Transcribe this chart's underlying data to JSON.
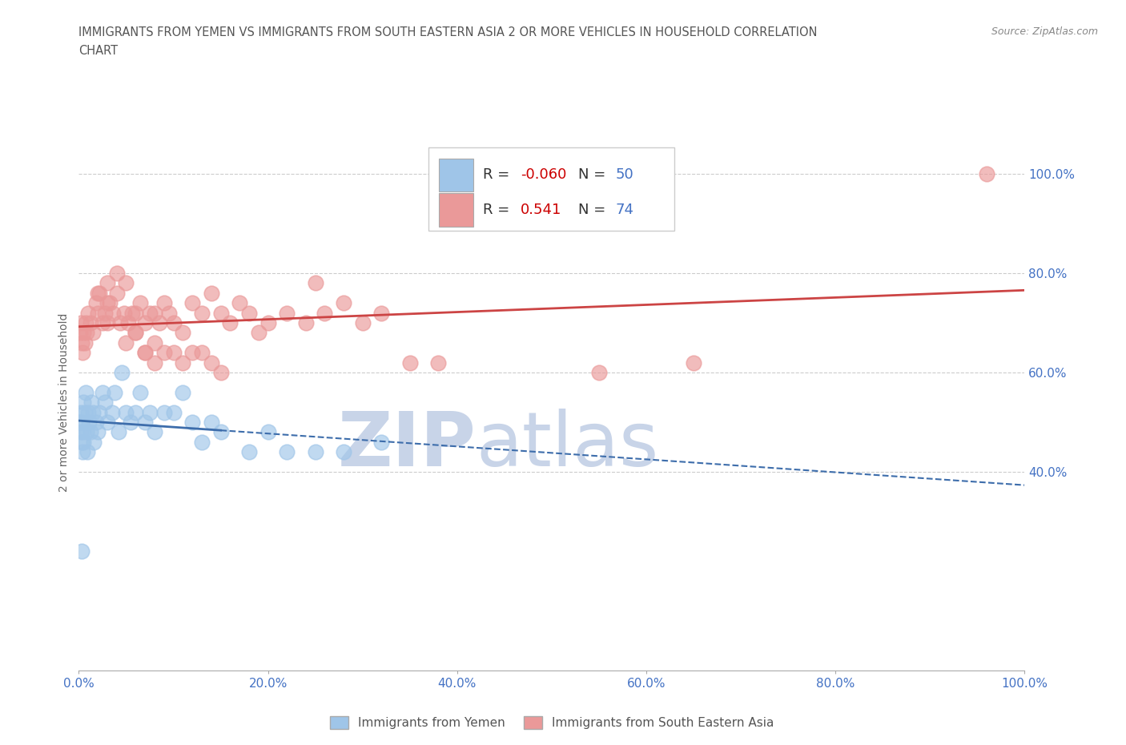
{
  "title_line1": "IMMIGRANTS FROM YEMEN VS IMMIGRANTS FROM SOUTH EASTERN ASIA 2 OR MORE VEHICLES IN HOUSEHOLD CORRELATION",
  "title_line2": "CHART",
  "source": "Source: ZipAtlas.com",
  "ylabel": "2 or more Vehicles in Household",
  "xlim": [
    0.0,
    1.0
  ],
  "ylim": [
    0.0,
    1.08
  ],
  "xtick_labels": [
    "0.0%",
    "20.0%",
    "40.0%",
    "60.0%",
    "80.0%",
    "100.0%"
  ],
  "xtick_vals": [
    0.0,
    0.2,
    0.4,
    0.6,
    0.8,
    1.0
  ],
  "ytick_labels": [
    "40.0%",
    "60.0%",
    "80.0%",
    "100.0%"
  ],
  "ytick_vals": [
    0.4,
    0.6,
    0.8,
    1.0
  ],
  "legend_labels": [
    "Immigrants from Yemen",
    "Immigrants from South Eastern Asia"
  ],
  "R_yemen": -0.06,
  "N_yemen": 50,
  "R_sea": 0.541,
  "N_sea": 74,
  "blue_color": "#9fc5e8",
  "pink_color": "#ea9999",
  "blue_line_color": "#3d6dab",
  "pink_line_color": "#cc4444",
  "watermark_zip": "ZIP",
  "watermark_atlas": "atlas",
  "watermark_color": "#c8d4e8",
  "background_color": "#ffffff",
  "title_color": "#555555",
  "axis_label_color": "#4472c4",
  "legend_R_color": "#cc0000",
  "legend_N_color": "#4472c4",
  "grid_color": "#cccccc",
  "yemen_x": [
    0.001,
    0.002,
    0.002,
    0.003,
    0.003,
    0.004,
    0.004,
    0.005,
    0.006,
    0.007,
    0.008,
    0.009,
    0.01,
    0.011,
    0.012,
    0.013,
    0.015,
    0.016,
    0.018,
    0.02,
    0.022,
    0.025,
    0.028,
    0.03,
    0.035,
    0.038,
    0.042,
    0.045,
    0.05,
    0.055,
    0.06,
    0.065,
    0.07,
    0.075,
    0.08,
    0.09,
    0.1,
    0.11,
    0.12,
    0.13,
    0.14,
    0.15,
    0.18,
    0.2,
    0.22,
    0.25,
    0.28,
    0.32,
    0.005,
    0.003
  ],
  "yemen_y": [
    0.5,
    0.52,
    0.48,
    0.46,
    0.5,
    0.44,
    0.48,
    0.54,
    0.52,
    0.56,
    0.48,
    0.44,
    0.52,
    0.5,
    0.48,
    0.54,
    0.52,
    0.46,
    0.5,
    0.48,
    0.52,
    0.56,
    0.54,
    0.5,
    0.52,
    0.56,
    0.48,
    0.6,
    0.52,
    0.5,
    0.52,
    0.56,
    0.5,
    0.52,
    0.48,
    0.52,
    0.52,
    0.56,
    0.5,
    0.46,
    0.5,
    0.48,
    0.44,
    0.48,
    0.44,
    0.44,
    0.44,
    0.46,
    0.46,
    0.24
  ],
  "sea_x": [
    0.001,
    0.002,
    0.003,
    0.004,
    0.005,
    0.006,
    0.007,
    0.008,
    0.01,
    0.012,
    0.015,
    0.018,
    0.02,
    0.022,
    0.025,
    0.028,
    0.03,
    0.033,
    0.036,
    0.04,
    0.044,
    0.048,
    0.052,
    0.056,
    0.06,
    0.065,
    0.07,
    0.075,
    0.08,
    0.085,
    0.09,
    0.095,
    0.1,
    0.11,
    0.12,
    0.13,
    0.14,
    0.15,
    0.16,
    0.17,
    0.18,
    0.19,
    0.2,
    0.22,
    0.24,
    0.26,
    0.28,
    0.3,
    0.32,
    0.35,
    0.38,
    0.02,
    0.03,
    0.05,
    0.06,
    0.07,
    0.08,
    0.03,
    0.04,
    0.05,
    0.06,
    0.07,
    0.08,
    0.09,
    0.1,
    0.11,
    0.12,
    0.13,
    0.14,
    0.15,
    0.55,
    0.65,
    0.25,
    0.96
  ],
  "sea_y": [
    0.68,
    0.7,
    0.66,
    0.64,
    0.68,
    0.66,
    0.7,
    0.68,
    0.72,
    0.7,
    0.68,
    0.74,
    0.72,
    0.76,
    0.7,
    0.72,
    0.7,
    0.74,
    0.72,
    0.76,
    0.7,
    0.72,
    0.7,
    0.72,
    0.72,
    0.74,
    0.7,
    0.72,
    0.72,
    0.7,
    0.74,
    0.72,
    0.7,
    0.68,
    0.74,
    0.72,
    0.76,
    0.72,
    0.7,
    0.74,
    0.72,
    0.68,
    0.7,
    0.72,
    0.7,
    0.72,
    0.74,
    0.7,
    0.72,
    0.62,
    0.62,
    0.76,
    0.74,
    0.66,
    0.68,
    0.64,
    0.62,
    0.78,
    0.8,
    0.78,
    0.68,
    0.64,
    0.66,
    0.64,
    0.64,
    0.62,
    0.64,
    0.64,
    0.62,
    0.6,
    0.6,
    0.62,
    0.78,
    1.0
  ],
  "yemen_line_solid_end": 0.15,
  "sea_line_solid_start": 0.0,
  "sea_line_solid_end": 1.0
}
